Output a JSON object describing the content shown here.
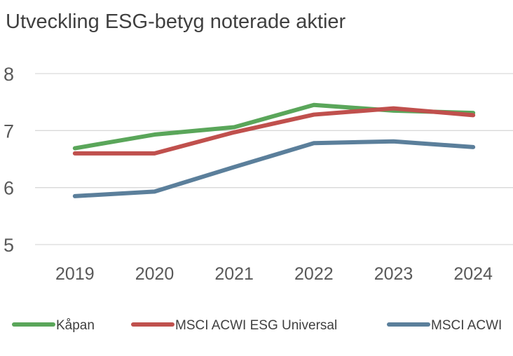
{
  "chart_data": {
    "type": "line",
    "title": "Utveckling ESG-betyg noterade aktier",
    "xlabel": "",
    "ylabel": "",
    "categories": [
      "2019",
      "2020",
      "2021",
      "2022",
      "2023",
      "2024"
    ],
    "ylim": [
      5,
      8
    ],
    "yticks": [
      "5",
      "6",
      "7",
      "8"
    ],
    "grid": true,
    "legend_position": "bottom",
    "series": [
      {
        "name": "Kåpan",
        "color": "#5aa65a",
        "values": [
          6.69,
          6.93,
          7.06,
          7.45,
          7.35,
          7.31
        ]
      },
      {
        "name": "MSCI ACWI ESG Universal",
        "color": "#c0504d",
        "values": [
          6.6,
          6.6,
          6.97,
          7.28,
          7.39,
          7.27
        ]
      },
      {
        "name": "MSCI ACWI",
        "color": "#5b7f9b",
        "values": [
          5.85,
          5.93,
          6.36,
          6.78,
          6.81,
          6.71
        ]
      }
    ]
  }
}
